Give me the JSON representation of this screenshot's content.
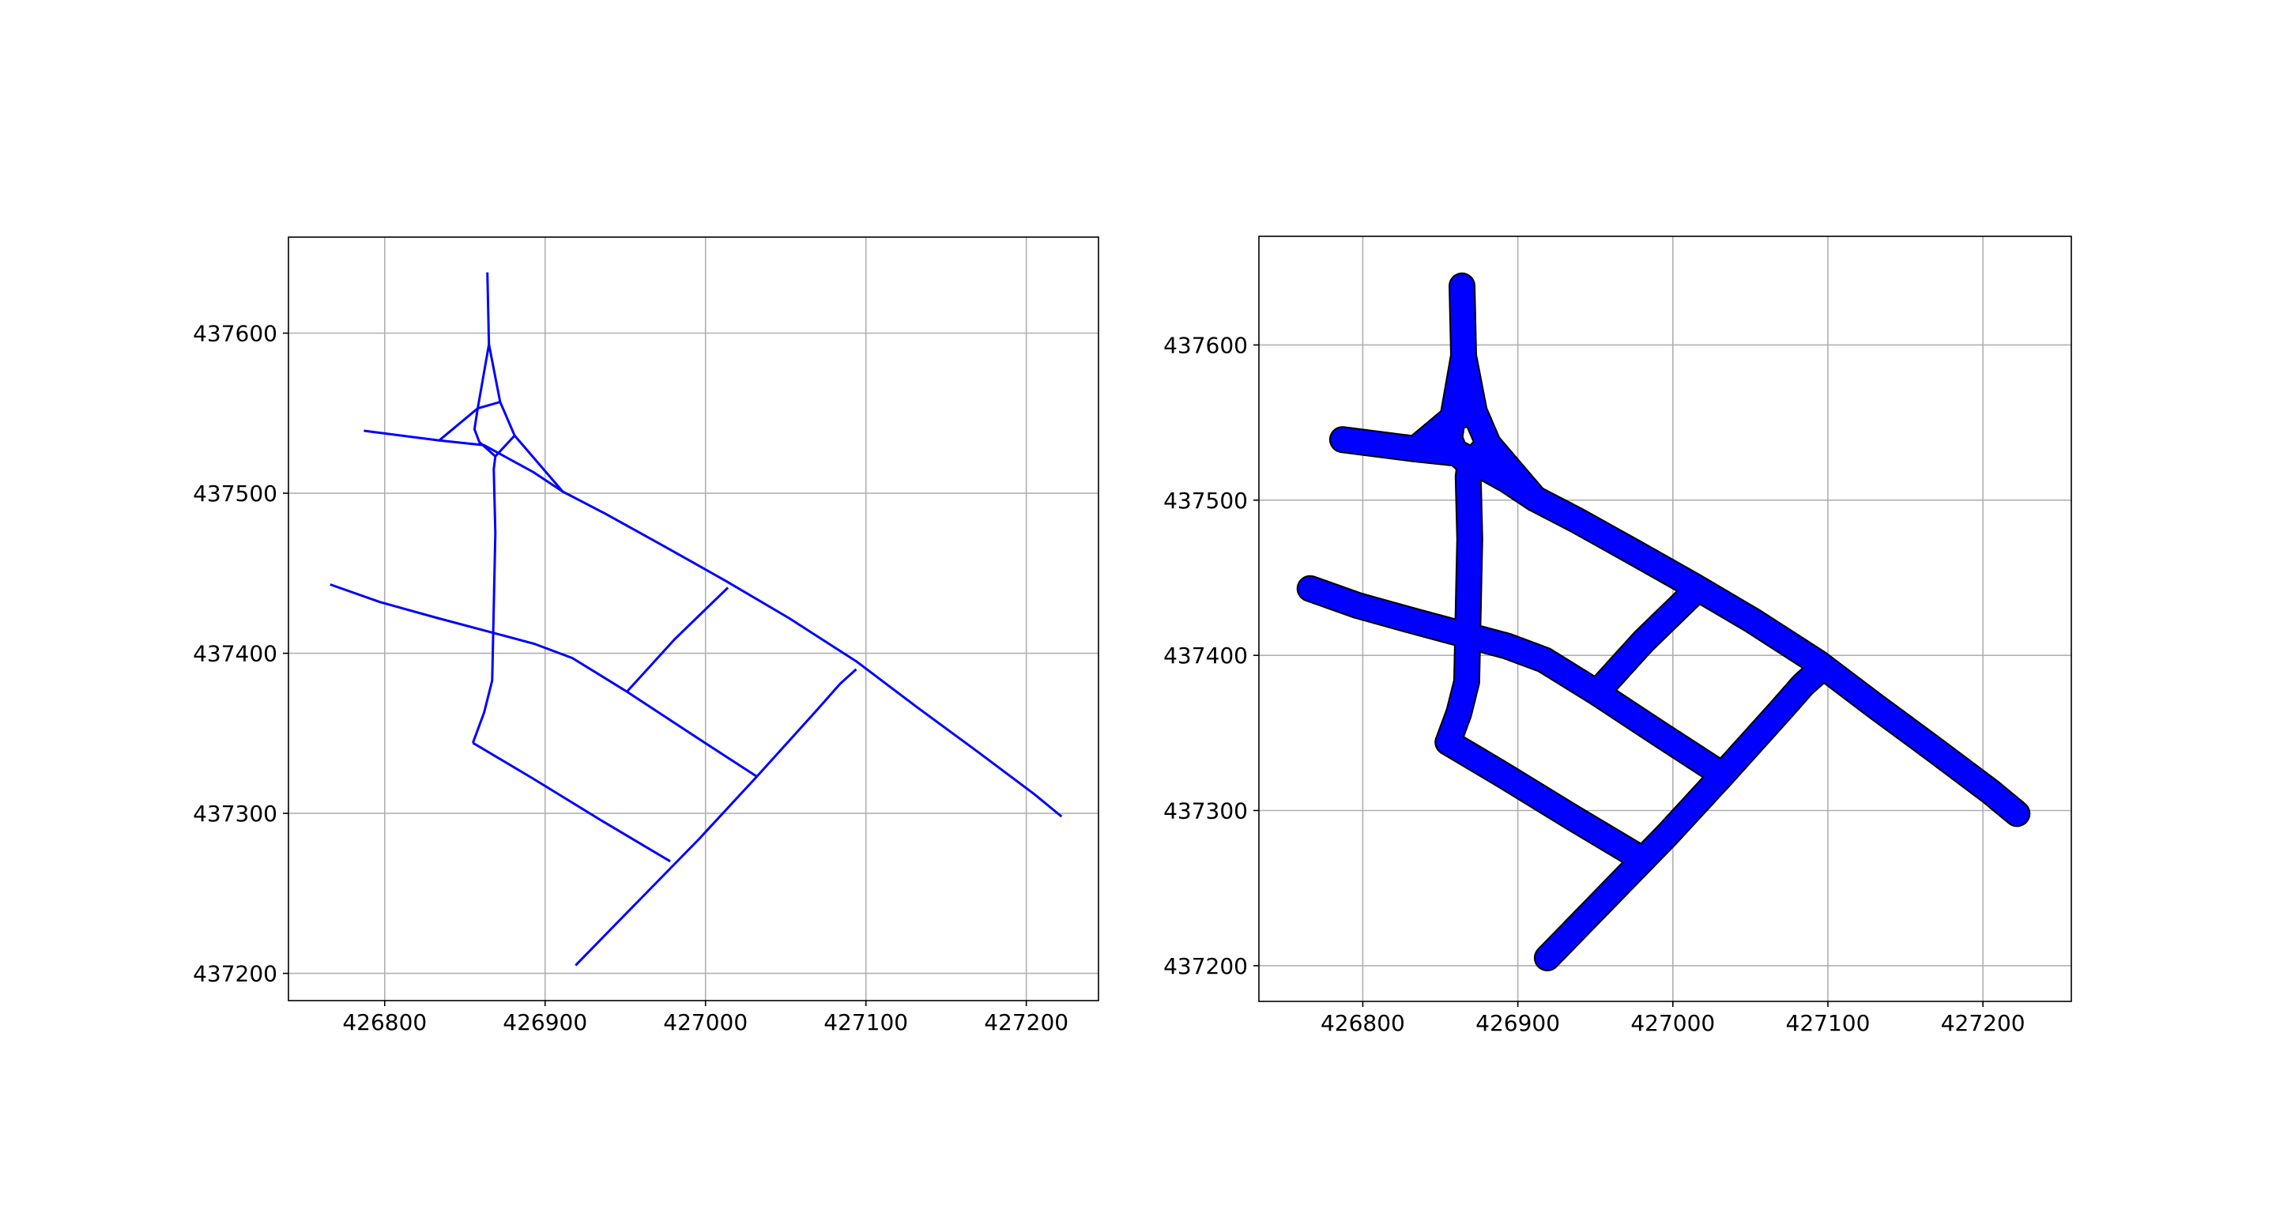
{
  "figure": {
    "background": "#ffffff",
    "line_color": "#0000ff",
    "outline_color": "#000000",
    "grid_color": "#b0b0b0"
  },
  "chart_data": [
    {
      "type": "line",
      "title": "",
      "xlabel": "",
      "ylabel": "",
      "xlim": [
        426740,
        427245
      ],
      "ylim": [
        437183,
        437660
      ],
      "xticks": [
        426800,
        426900,
        427000,
        427100,
        427200
      ],
      "yticks": [
        437200,
        437300,
        437400,
        437500,
        437600
      ],
      "xtick_labels": [
        "426800",
        "426900",
        "427000",
        "427100",
        "427200"
      ],
      "ytick_labels": [
        "437200",
        "437300",
        "437400",
        "437500",
        "437600"
      ],
      "grid": true,
      "legend": "none",
      "render": "lines",
      "series": [
        {
          "points": [
            [
              426864,
              437638
            ],
            [
              426865,
              437593
            ],
            [
              426872,
              437557
            ],
            [
              426881,
              437536
            ],
            [
              426911,
              437501
            ]
          ]
        },
        {
          "points": [
            [
              426865,
              437593
            ],
            [
              426858,
              437553
            ],
            [
              426856,
              437540
            ],
            [
              426859,
              437532
            ],
            [
              426869,
              437523
            ]
          ]
        },
        {
          "points": [
            [
              426858,
              437553
            ],
            [
              426872,
              437557
            ]
          ]
        },
        {
          "points": [
            [
              426834,
              437533
            ],
            [
              426858,
              437553
            ]
          ]
        },
        {
          "points": [
            [
              426787,
              437539
            ],
            [
              426834,
              437533
            ],
            [
              426862,
              437530
            ],
            [
              426893,
              437513
            ],
            [
              426911,
              437501
            ],
            [
              426938,
              437487
            ],
            [
              426974,
              437467
            ],
            [
              427013,
              437445
            ],
            [
              427052,
              437422
            ],
            [
              427094,
              437395
            ],
            [
              427131,
              437367
            ],
            [
              427169,
              437339
            ],
            [
              427205,
              437312
            ],
            [
              427222,
              437298
            ]
          ]
        },
        {
          "points": [
            [
              426881,
              437536
            ],
            [
              426869,
              437523
            ],
            [
              426868,
              437515
            ],
            [
              426869,
              437475
            ],
            [
              426867,
              437383
            ],
            [
              426862,
              437363
            ],
            [
              426855,
              437344
            ]
          ]
        },
        {
          "points": [
            [
              426766,
              437443
            ],
            [
              426797,
              437432
            ],
            [
              426833,
              437422
            ],
            [
              426863,
              437414
            ],
            [
              426893,
              437406
            ],
            [
              426917,
              437397
            ],
            [
              426951,
              437376
            ],
            [
              426992,
              437349
            ],
            [
              427032,
              437323
            ]
          ]
        },
        {
          "points": [
            [
              426855,
              437344
            ],
            [
              426892,
              437322
            ],
            [
              426936,
              437295
            ],
            [
              426978,
              437270
            ]
          ]
        },
        {
          "points": [
            [
              426919,
              437205
            ],
            [
              426957,
              437244
            ],
            [
              426996,
              437284
            ],
            [
              427032,
              437323
            ],
            [
              427069,
              437364
            ],
            [
              427084,
              437381
            ],
            [
              427094,
              437390
            ]
          ]
        },
        {
          "points": [
            [
              426951,
              437376
            ],
            [
              426981,
              437409
            ],
            [
              427014,
              437441
            ]
          ]
        }
      ]
    },
    {
      "type": "line",
      "title": "",
      "xlabel": "",
      "ylabel": "",
      "xlim": [
        426733,
        427257
      ],
      "ylim": [
        437177,
        437670
      ],
      "xticks": [
        426800,
        426900,
        427000,
        427100,
        427200
      ],
      "yticks": [
        437200,
        437300,
        437400,
        437500,
        437600
      ],
      "xtick_labels": [
        "426800",
        "426900",
        "427000",
        "427100",
        "427200"
      ],
      "ytick_labels": [
        "437200",
        "437300",
        "437400",
        "437500",
        "437600"
      ],
      "grid": true,
      "legend": "none",
      "render": "buffered",
      "series": [
        {
          "points": [
            [
              426864,
              437638
            ],
            [
              426865,
              437593
            ],
            [
              426872,
              437557
            ],
            [
              426881,
              437536
            ],
            [
              426911,
              437501
            ]
          ]
        },
        {
          "points": [
            [
              426865,
              437593
            ],
            [
              426858,
              437553
            ],
            [
              426856,
              437540
            ],
            [
              426859,
              437532
            ],
            [
              426869,
              437523
            ]
          ]
        },
        {
          "points": [
            [
              426858,
              437553
            ],
            [
              426872,
              437557
            ]
          ]
        },
        {
          "points": [
            [
              426834,
              437533
            ],
            [
              426858,
              437553
            ]
          ]
        },
        {
          "points": [
            [
              426787,
              437539
            ],
            [
              426834,
              437533
            ],
            [
              426862,
              437530
            ],
            [
              426893,
              437513
            ],
            [
              426911,
              437501
            ],
            [
              426938,
              437487
            ],
            [
              426974,
              437467
            ],
            [
              427013,
              437445
            ],
            [
              427052,
              437422
            ],
            [
              427094,
              437395
            ],
            [
              427131,
              437367
            ],
            [
              427169,
              437339
            ],
            [
              427205,
              437312
            ],
            [
              427222,
              437298
            ]
          ]
        },
        {
          "points": [
            [
              426881,
              437536
            ],
            [
              426869,
              437523
            ],
            [
              426868,
              437515
            ],
            [
              426869,
              437475
            ],
            [
              426867,
              437383
            ],
            [
              426862,
              437363
            ],
            [
              426855,
              437344
            ]
          ]
        },
        {
          "points": [
            [
              426766,
              437443
            ],
            [
              426797,
              437432
            ],
            [
              426833,
              437422
            ],
            [
              426863,
              437414
            ],
            [
              426893,
              437406
            ],
            [
              426917,
              437397
            ],
            [
              426951,
              437376
            ],
            [
              426992,
              437349
            ],
            [
              427032,
              437323
            ]
          ]
        },
        {
          "points": [
            [
              426855,
              437344
            ],
            [
              426892,
              437322
            ],
            [
              426936,
              437295
            ],
            [
              426978,
              437270
            ]
          ]
        },
        {
          "points": [
            [
              426919,
              437205
            ],
            [
              426957,
              437244
            ],
            [
              426996,
              437284
            ],
            [
              427032,
              437323
            ],
            [
              427069,
              437364
            ],
            [
              427084,
              437381
            ],
            [
              427094,
              437390
            ]
          ]
        },
        {
          "points": [
            [
              426951,
              437376
            ],
            [
              426981,
              437409
            ],
            [
              427014,
              437441
            ]
          ]
        }
      ]
    }
  ]
}
